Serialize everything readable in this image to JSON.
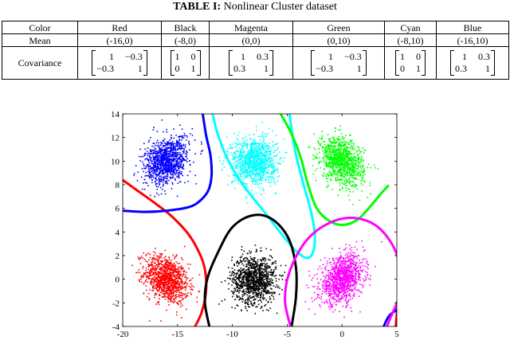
{
  "caption": {
    "label": "TABLE I:",
    "text": "Nonlinear Cluster dataset"
  },
  "table": {
    "header_label": "Color",
    "mean_label": "Mean",
    "cov_label": "Covariance",
    "columns": [
      {
        "color": "Red",
        "mean": "(-16,0)",
        "cov": [
          "1",
          "−0.3",
          "−0.3",
          "1"
        ]
      },
      {
        "color": "Black",
        "mean": "(-8,0)",
        "cov": [
          "1",
          "0",
          "0",
          "1"
        ]
      },
      {
        "color": "Magenta",
        "mean": "(0,0)",
        "cov": [
          "1",
          "0.3",
          "0.3",
          "1"
        ]
      },
      {
        "color": "Green",
        "mean": "(0,10)",
        "cov": [
          "1",
          "−0.3",
          "−0.3",
          "1"
        ]
      },
      {
        "color": "Cyan",
        "mean": "(-8,10)",
        "cov": [
          "1",
          "0",
          "0",
          "1"
        ]
      },
      {
        "color": "Blue",
        "mean": "(-16,10)",
        "cov": [
          "1",
          "0.3",
          "0.3",
          "1"
        ]
      }
    ]
  },
  "chart_data": {
    "type": "scatter",
    "xlim": [
      -20,
      5
    ],
    "ylim": [
      -4,
      14
    ],
    "xticks": [
      -20,
      -15,
      -10,
      -5,
      0,
      5
    ],
    "yticks": [
      -4,
      -2,
      0,
      2,
      4,
      6,
      8,
      10,
      12,
      14
    ],
    "grid": false,
    "clusters": [
      {
        "color": "#ff0000",
        "mean": [
          -16,
          0
        ],
        "cov": [
          [
            1,
            -0.3
          ],
          [
            -0.3,
            1
          ]
        ]
      },
      {
        "color": "#000000",
        "mean": [
          -8,
          0
        ],
        "cov": [
          [
            1,
            0
          ],
          [
            0,
            1
          ]
        ]
      },
      {
        "color": "#ff00ff",
        "mean": [
          0,
          0
        ],
        "cov": [
          [
            1,
            0.3
          ],
          [
            0.3,
            1
          ]
        ]
      },
      {
        "color": "#00ff00",
        "mean": [
          0,
          10
        ],
        "cov": [
          [
            1,
            -0.3
          ],
          [
            -0.3,
            1
          ]
        ]
      },
      {
        "color": "#00ffff",
        "mean": [
          -8,
          10
        ],
        "cov": [
          [
            1,
            0
          ],
          [
            0,
            1
          ]
        ]
      },
      {
        "color": "#0000ff",
        "mean": [
          -16,
          10
        ],
        "cov": [
          [
            1,
            0.3
          ],
          [
            0.3,
            1
          ]
        ]
      }
    ],
    "boundaries": [
      {
        "color": "#ff0000",
        "points": [
          [
            -20,
            8.4
          ],
          [
            -18.5,
            7.4
          ],
          [
            -17,
            6.4
          ],
          [
            -15.5,
            5.3
          ],
          [
            -14,
            3.8
          ],
          [
            -13,
            2.2
          ],
          [
            -12.5,
            0.8
          ],
          [
            -12.4,
            -1
          ],
          [
            -12.8,
            -2.8
          ],
          [
            -13.4,
            -4
          ]
        ]
      },
      {
        "color": "#ff0000",
        "points": [
          [
            4.9,
            -4
          ],
          [
            5.1,
            -2
          ],
          [
            5.4,
            0
          ],
          [
            5.6,
            2
          ]
        ]
      },
      {
        "color": "#0000ff",
        "points": [
          [
            -20,
            5.8
          ],
          [
            -18,
            5.7
          ],
          [
            -16,
            5.8
          ],
          [
            -14,
            6.1
          ],
          [
            -13,
            6.6
          ],
          [
            -12.2,
            7.5
          ],
          [
            -11.9,
            8.8
          ],
          [
            -12,
            10.5
          ],
          [
            -12.4,
            12.2
          ],
          [
            -12.7,
            14
          ]
        ]
      },
      {
        "color": "#0000ff",
        "points": [
          [
            3.8,
            -4
          ],
          [
            4.3,
            -3.1
          ],
          [
            5,
            -2.6
          ]
        ]
      },
      {
        "color": "#00ffff",
        "points": [
          [
            -11.8,
            14
          ],
          [
            -11.4,
            12.5
          ],
          [
            -10.6,
            10.5
          ],
          [
            -9.2,
            8.2
          ],
          [
            -7,
            5.6
          ],
          [
            -5.4,
            3.7
          ],
          [
            -4.2,
            2.4
          ],
          [
            -3.2,
            1.8
          ],
          [
            -2.6,
            2.4
          ],
          [
            -2.5,
            4
          ],
          [
            -2.9,
            6
          ],
          [
            -3.6,
            8.3
          ],
          [
            -4.3,
            11
          ],
          [
            -4.8,
            14
          ]
        ]
      },
      {
        "color": "#00ff00",
        "points": [
          [
            -5.6,
            14
          ],
          [
            -4.7,
            12.5
          ],
          [
            -3.8,
            10.4
          ],
          [
            -3.1,
            8
          ],
          [
            -2.3,
            6
          ],
          [
            -1.1,
            4.9
          ],
          [
            0.2,
            4.6
          ],
          [
            1.5,
            5.1
          ],
          [
            2.7,
            6.3
          ],
          [
            3.6,
            7.3
          ],
          [
            4.2,
            7.9
          ]
        ]
      },
      {
        "color": "#000000",
        "points": [
          [
            -12.1,
            -4
          ],
          [
            -12.5,
            -2
          ],
          [
            -12.3,
            0
          ],
          [
            -11.3,
            2.3
          ],
          [
            -10,
            4.4
          ],
          [
            -8.2,
            5.4
          ],
          [
            -6.4,
            5.1
          ],
          [
            -4.9,
            3.5
          ],
          [
            -4.2,
            1
          ],
          [
            -4.2,
            -1.5
          ],
          [
            -4.6,
            -4
          ]
        ]
      },
      {
        "color": "#ff00ff",
        "points": [
          [
            -4.7,
            -4
          ],
          [
            -5.2,
            -1.8
          ],
          [
            -4.8,
            0.6
          ],
          [
            -3.4,
            3.1
          ],
          [
            -1.5,
            4.6
          ],
          [
            0.8,
            5.2
          ],
          [
            3,
            4.6
          ],
          [
            4.6,
            2.9
          ],
          [
            5.3,
            0.9
          ],
          [
            5.2,
            -1.4
          ],
          [
            4.4,
            -3.3
          ],
          [
            4.1,
            -4
          ]
        ]
      }
    ]
  }
}
